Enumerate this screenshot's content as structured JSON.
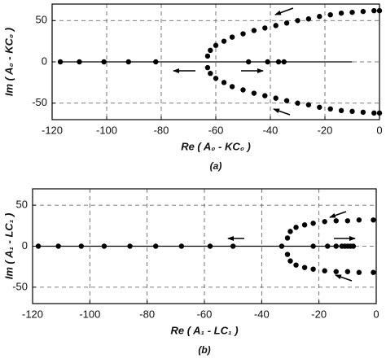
{
  "chart_data": [
    {
      "type": "scatter",
      "xlabel": "Re ( A₀ - KC₀ )",
      "ylabel": "Im ( A₀ - KC₀ )",
      "caption": "(a)",
      "xlim": [
        -120,
        0
      ],
      "ylim": [
        -70,
        70
      ],
      "xticks": [
        -120,
        -100,
        -80,
        -60,
        -40,
        -20,
        0
      ],
      "yticks": [
        -50,
        0,
        50
      ],
      "grid": true,
      "color": "#000000",
      "x": [
        -117,
        -110,
        -101,
        -92,
        -82,
        -48,
        -41,
        -37,
        -35,
        -63,
        -62,
        -60,
        -57,
        -54,
        -50,
        -46,
        -42,
        -38,
        -34,
        -30,
        -26,
        -22,
        -18,
        -14,
        -10,
        -6,
        -2,
        0,
        -63,
        -62,
        -60,
        -57,
        -54,
        -50,
        -46,
        -42,
        -38,
        -34,
        -30,
        -26,
        -22,
        -18,
        -14,
        -10,
        -6,
        -2,
        0
      ],
      "values": [
        0,
        0,
        0,
        0,
        0,
        0,
        0,
        0,
        0,
        7,
        14,
        20,
        25,
        30,
        34,
        38,
        41,
        44,
        47,
        50,
        52,
        55,
        57,
        59,
        60,
        61,
        62,
        62,
        -7,
        -14,
        -20,
        -25,
        -30,
        -34,
        -38,
        -41,
        -44,
        -47,
        -50,
        -52,
        -55,
        -57,
        -59,
        -60,
        -61,
        -62,
        -62
      ]
    },
    {
      "type": "scatter",
      "xlabel": "Re ( A₁ - LC₁ )",
      "ylabel": "Im ( A₁ - LC₁ )",
      "caption": "(b)",
      "xlim": [
        -120,
        0
      ],
      "ylim": [
        -70,
        70
      ],
      "xticks": [
        -120,
        -100,
        -80,
        -60,
        -40,
        -20,
        0
      ],
      "yticks": [
        -50,
        0,
        50
      ],
      "grid": true,
      "color": "#000000",
      "x": [
        -118,
        -111,
        -103,
        -95,
        -86,
        -77,
        -68,
        -58,
        -50,
        -22,
        -17,
        -14,
        -12,
        -11,
        -10,
        -9,
        -8,
        -33,
        -31,
        -30,
        -28,
        -25,
        -22,
        -18,
        -14,
        -10,
        -6,
        -1,
        -31,
        -30,
        -28,
        -25,
        -22,
        -18,
        -14,
        -10,
        -6,
        -1
      ],
      "values": [
        0,
        0,
        0,
        0,
        0,
        0,
        0,
        0,
        0,
        0,
        0,
        0,
        0,
        0,
        0,
        0,
        0,
        0,
        10,
        18,
        23,
        26,
        28,
        30,
        31,
        31,
        32,
        32,
        -10,
        -18,
        -23,
        -26,
        -28,
        -30,
        -31,
        -31,
        -32,
        -32
      ]
    }
  ]
}
